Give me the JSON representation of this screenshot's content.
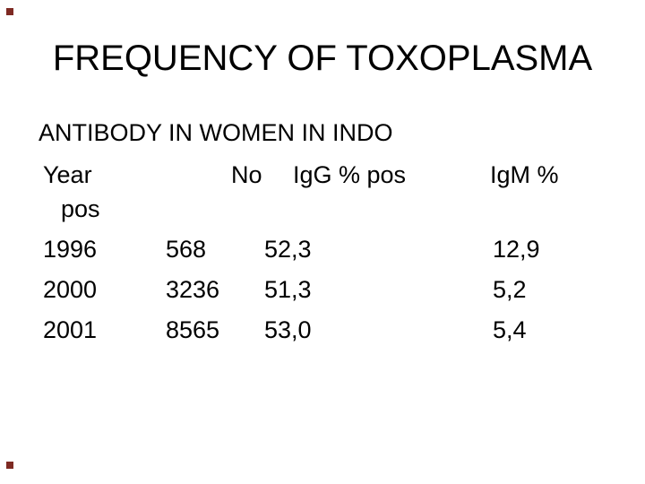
{
  "slide": {
    "title": "FREQUENCY OF TOXOPLASMA",
    "body_line1": "ANTIBODY IN WOMEN IN INDO",
    "background_color": "#ffffff",
    "text_color": "#000000",
    "decor_color": "#7e2a23"
  },
  "table": {
    "headers": {
      "year": "Year",
      "no": "No",
      "igg_pct_pos": "IgG % pos",
      "igm_pct": "IgM %",
      "year_wrap": "pos"
    },
    "rows": [
      {
        "year": "1996",
        "no": "568",
        "igg_pct_pos": "52,3",
        "igm_pct": "12,9"
      },
      {
        "year": "2000",
        "no": "3236",
        "igg_pct_pos": "51,3",
        "igm_pct": "5,2"
      },
      {
        "year": "2001",
        "no": "8565",
        "igg_pct_pos": "53,0",
        "igm_pct": "5,4"
      }
    ]
  }
}
